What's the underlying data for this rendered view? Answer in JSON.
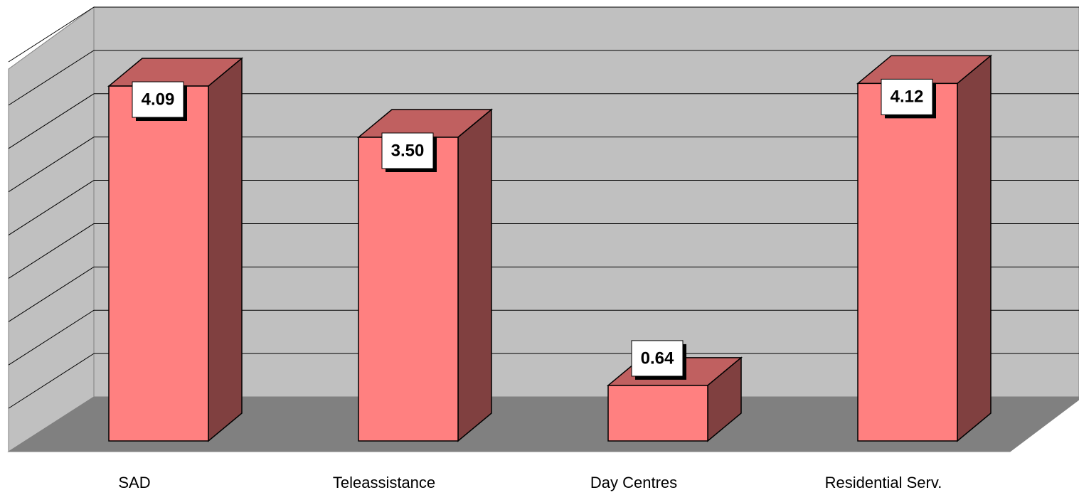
{
  "chart_data": {
    "type": "bar3d",
    "categories": [
      "SAD",
      "Teleassistance",
      "Day Centres",
      "Residential Serv."
    ],
    "values": [
      4.09,
      3.5,
      0.64,
      4.12
    ],
    "value_labels": [
      "4.09",
      "3.50",
      "0.64",
      "4.12"
    ],
    "color": "#ff8080",
    "ylim": [
      0,
      4.5
    ],
    "yticks": [
      0,
      0.5,
      1,
      1.5,
      2,
      2.5,
      3,
      3.5,
      4,
      4.5
    ],
    "grid": true
  }
}
